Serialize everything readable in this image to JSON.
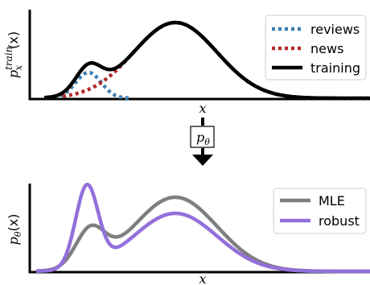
{
  "top_panel": {
    "ylabel_main": "p",
    "ylabel_sup": "train",
    "ylabel_sub": "x",
    "ylabel_arg": "(x)",
    "xlabel": "x",
    "legend": [
      {
        "label": "reviews",
        "color": "#3d7fb3",
        "style": "dotted"
      },
      {
        "label": "news",
        "color": "#b22a2a",
        "style": "dotted"
      },
      {
        "label": "training",
        "color": "#000000",
        "style": "solid"
      }
    ]
  },
  "transform_box": {
    "main": "p",
    "sub": "θ"
  },
  "bottom_panel": {
    "ylabel_main": "p",
    "ylabel_sub": "θ",
    "ylabel_arg": "(x)",
    "xlabel": "x",
    "legend": [
      {
        "label": "MLE",
        "color": "#7f7f7f",
        "style": "solid"
      },
      {
        "label": "robust",
        "color": "#9370db",
        "style": "solid"
      }
    ]
  }
}
